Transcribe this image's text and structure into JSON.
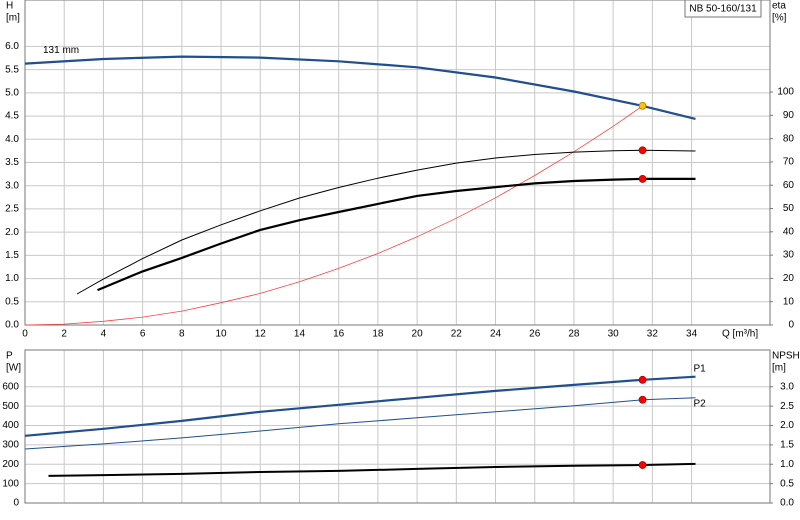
{
  "chart_data": [
    {
      "type": "line",
      "title": "NB 50-160/131",
      "ylabel": "H",
      "yunit": "[m]",
      "y2label": "eta",
      "y2unit": "[%]",
      "xlabel": "Q [m³/h]",
      "xlim": [
        0,
        38
      ],
      "xticks": [
        0,
        2,
        4,
        6,
        8,
        10,
        12,
        14,
        16,
        18,
        20,
        22,
        24,
        26,
        28,
        30,
        32,
        34
      ],
      "ylim": [
        0,
        7
      ],
      "yticks": [
        {
          "value": 0,
          "label": "0.0"
        },
        0.5,
        {
          "value": 1,
          "label": "1.0"
        },
        1.5,
        {
          "value": 2,
          "label": "2.0"
        },
        2.5,
        {
          "value": 3,
          "label": "3.0"
        },
        3.5,
        {
          "value": 4,
          "label": "4.0"
        },
        4.5,
        {
          "value": 5,
          "label": "5.0"
        },
        5.5,
        {
          "value": 6,
          "label": "6.0"
        }
      ],
      "y2lim": [
        0,
        139.5
      ],
      "y2ticks": [
        0,
        10,
        20,
        30,
        40,
        50,
        60,
        70,
        80,
        90,
        100
      ],
      "grid": true,
      "series": [
        {
          "name": "131 mm",
          "color": "#1f4f8f",
          "linewidth": 2.2,
          "x": [
            0,
            4,
            8,
            12,
            16,
            20,
            24,
            28,
            31.5,
            34.2
          ],
          "values": [
            5.63,
            5.73,
            5.78,
            5.76,
            5.68,
            5.55,
            5.33,
            5.03,
            4.72,
            4.44
          ]
        },
        {
          "color": "#ff4040",
          "linewidth": 0.8,
          "x": [
            0,
            2,
            4,
            6,
            8,
            10,
            12,
            14,
            16,
            18,
            20,
            22,
            24,
            26,
            28,
            30,
            31.5
          ],
          "values": [
            0,
            0.02,
            0.08,
            0.17,
            0.3,
            0.48,
            0.68,
            0.93,
            1.22,
            1.54,
            1.9,
            2.3,
            2.74,
            3.22,
            3.73,
            4.28,
            4.72
          ]
        },
        {
          "color": "#000000",
          "linewidth": 1,
          "axis": "y2",
          "x": [
            2.65,
            4,
            6,
            8,
            10,
            12,
            14,
            16,
            18,
            20,
            22,
            24,
            26,
            28,
            30,
            31.5,
            34.2
          ],
          "values": [
            13.3,
            19.7,
            28.5,
            36.5,
            43,
            49,
            54.5,
            59,
            63,
            66.5,
            69.5,
            71.7,
            73.2,
            74.2,
            74.8,
            75,
            74.7
          ]
        },
        {
          "color": "#000000",
          "linewidth": 2.2,
          "axis": "y2",
          "x": [
            3.7,
            6,
            8,
            10,
            12,
            14,
            16,
            18,
            20,
            22,
            24,
            26,
            28,
            30,
            31.5,
            34.2
          ],
          "values": [
            15,
            23,
            28.8,
            35,
            40.8,
            45,
            48.5,
            52,
            55.4,
            57.5,
            59.2,
            60.8,
            61.8,
            62.4,
            62.7,
            62.7
          ]
        }
      ],
      "markers": [
        {
          "x": 31.5,
          "y": 4.72,
          "color": "#ffc000"
        },
        {
          "x": 31.5,
          "y": 75,
          "axis": "y2",
          "color": "#ff0000"
        },
        {
          "x": 31.5,
          "y": 62.7,
          "axis": "y2",
          "color": "#ff0000"
        }
      ]
    },
    {
      "type": "line",
      "ylabel": "P",
      "yunit": "[W]",
      "y2label": "NPSH",
      "y2unit": "[m]",
      "xlim": [
        0,
        38
      ],
      "xticks": [
        0,
        2,
        4,
        6,
        8,
        10,
        12,
        14,
        16,
        18,
        20,
        22,
        24,
        26,
        28,
        30,
        32,
        34
      ],
      "ylim": [
        0,
        790
      ],
      "yticks": [
        0,
        100,
        200,
        300,
        400,
        500,
        600
      ],
      "y2lim": [
        0,
        3.95
      ],
      "y2ticks": [
        {
          "value": 0,
          "label": "0.0"
        },
        0.5,
        {
          "value": 1,
          "label": "1.0"
        },
        1.5,
        {
          "value": 2,
          "label": "2.0"
        },
        2.5,
        {
          "value": 3,
          "label": "3.0"
        }
      ],
      "grid": true,
      "series": [
        {
          "name": "P1",
          "color": "#1f4f8f",
          "linewidth": 2.2,
          "x": [
            0,
            4,
            8,
            12,
            16,
            20,
            24,
            28,
            31.5,
            34.2
          ],
          "values": [
            347,
            383,
            424,
            471,
            507,
            543,
            579,
            610,
            636,
            652
          ]
        },
        {
          "name": "P2",
          "color": "#1f4f8f",
          "linewidth": 1,
          "x": [
            0,
            4,
            8,
            12,
            16,
            20,
            24,
            28,
            31.5,
            34.2
          ],
          "values": [
            279,
            305,
            336,
            372,
            409,
            440,
            471,
            502,
            533,
            543
          ]
        },
        {
          "color": "#000000",
          "linewidth": 2,
          "axis": "y2",
          "x": [
            1.2,
            4,
            8,
            12,
            16,
            20,
            24,
            28,
            31.5,
            34.2
          ],
          "values": [
            0.7,
            0.72,
            0.75,
            0.8,
            0.83,
            0.88,
            0.93,
            0.96,
            0.98,
            1.01
          ]
        }
      ],
      "markers": [
        {
          "x": 31.5,
          "y": 636,
          "color": "#ff0000"
        },
        {
          "x": 31.5,
          "y": 533,
          "color": "#ff0000"
        },
        {
          "x": 31.5,
          "y": 0.98,
          "axis": "y2",
          "color": "#ff0000"
        }
      ]
    }
  ]
}
